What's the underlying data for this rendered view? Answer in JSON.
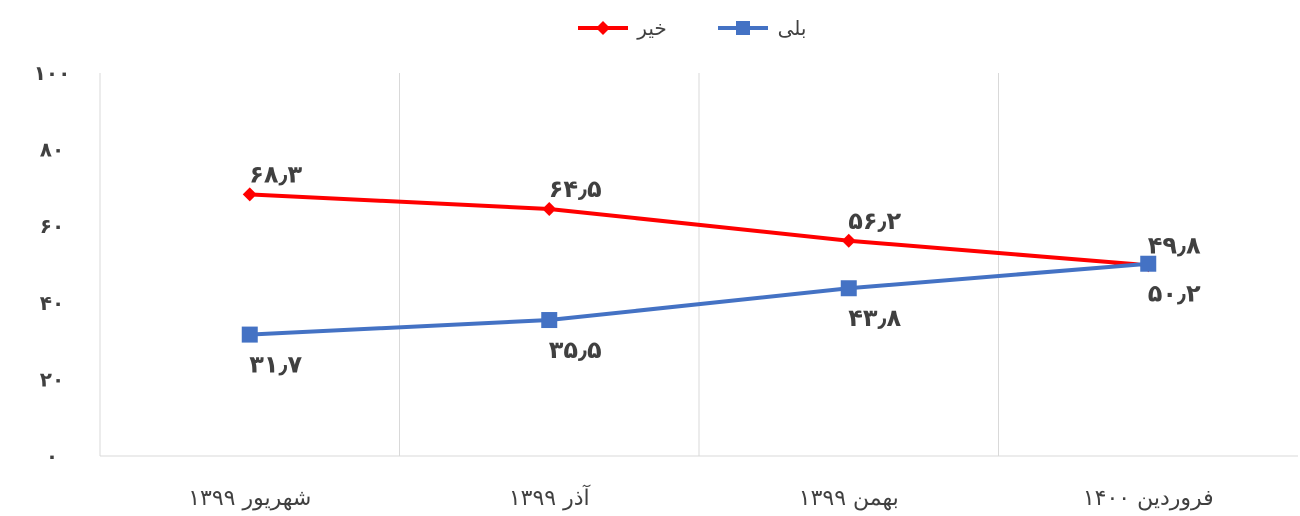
{
  "chart_data": {
    "type": "line",
    "title": "",
    "xlabel": "",
    "ylabel": "",
    "categories": [
      "شهریور ۱۳۹۹",
      "آذر ۱۳۹۹",
      "بهمن ۱۳۹۹",
      "فروردین ۱۴۰۰"
    ],
    "ylim": [
      0,
      100
    ],
    "yticks": [
      0,
      20,
      40,
      60,
      80,
      100
    ],
    "ytick_labels": [
      "۰",
      "۲۰",
      "۴۰",
      "۶۰",
      "۸۰",
      "۱۰۰"
    ],
    "grid": "vertical",
    "legend_position": "top",
    "series": [
      {
        "name": "خیر",
        "color": "#FF0000",
        "marker": "diamond",
        "values": [
          68.3,
          64.5,
          56.2,
          49.8
        ],
        "labels": [
          "۶۸٫۳",
          "۶۴٫۵",
          "۵۶٫۲",
          "۴۹٫۸"
        ],
        "label_position": "above"
      },
      {
        "name": "بلی",
        "color": "#4472C4",
        "marker": "square",
        "values": [
          31.7,
          35.5,
          43.8,
          50.2
        ],
        "labels": [
          "۳۱٫۷",
          "۳۵٫۵",
          "۴۳٫۸",
          "۵۰٫۲"
        ],
        "label_position": "below"
      }
    ]
  }
}
